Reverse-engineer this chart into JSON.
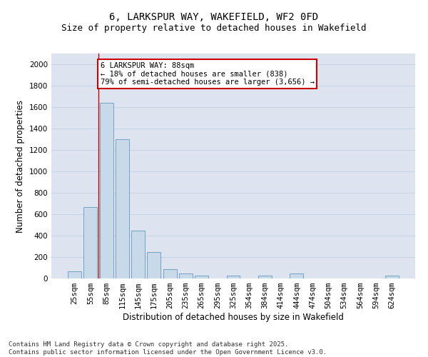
{
  "title_line1": "6, LARKSPUR WAY, WAKEFIELD, WF2 0FD",
  "title_line2": "Size of property relative to detached houses in Wakefield",
  "xlabel": "Distribution of detached houses by size in Wakefield",
  "ylabel": "Number of detached properties",
  "bar_color": "#c8daea",
  "bar_edge_color": "#6699bb",
  "grid_color": "#c8d4e4",
  "background_color": "#dde4ef",
  "categories": [
    "25sqm",
    "55sqm",
    "85sqm",
    "115sqm",
    "145sqm",
    "175sqm",
    "205sqm",
    "235sqm",
    "265sqm",
    "295sqm",
    "325sqm",
    "354sqm",
    "384sqm",
    "414sqm",
    "444sqm",
    "474sqm",
    "504sqm",
    "534sqm",
    "564sqm",
    "594sqm",
    "624sqm"
  ],
  "values": [
    70,
    670,
    1640,
    1300,
    450,
    250,
    90,
    50,
    30,
    0,
    30,
    0,
    30,
    0,
    50,
    0,
    0,
    0,
    0,
    0,
    30
  ],
  "ylim": [
    0,
    2100
  ],
  "yticks": [
    0,
    200,
    400,
    600,
    800,
    1000,
    1200,
    1400,
    1600,
    1800,
    2000
  ],
  "property_line_bin": 2,
  "annotation_line1": "6 LARKSPUR WAY: 88sqm",
  "annotation_line2": "← 18% of detached houses are smaller (838)",
  "annotation_line3": "79% of semi-detached houses are larger (3,656) →",
  "annotation_box_color": "#ffffff",
  "annotation_box_edge": "#cc0000",
  "vline_color": "#cc0000",
  "footnote": "Contains HM Land Registry data © Crown copyright and database right 2025.\nContains public sector information licensed under the Open Government Licence v3.0.",
  "title_fontsize": 10,
  "subtitle_fontsize": 9,
  "axis_label_fontsize": 8.5,
  "tick_fontsize": 7.5,
  "annotation_fontsize": 7.5,
  "footnote_fontsize": 6.5
}
